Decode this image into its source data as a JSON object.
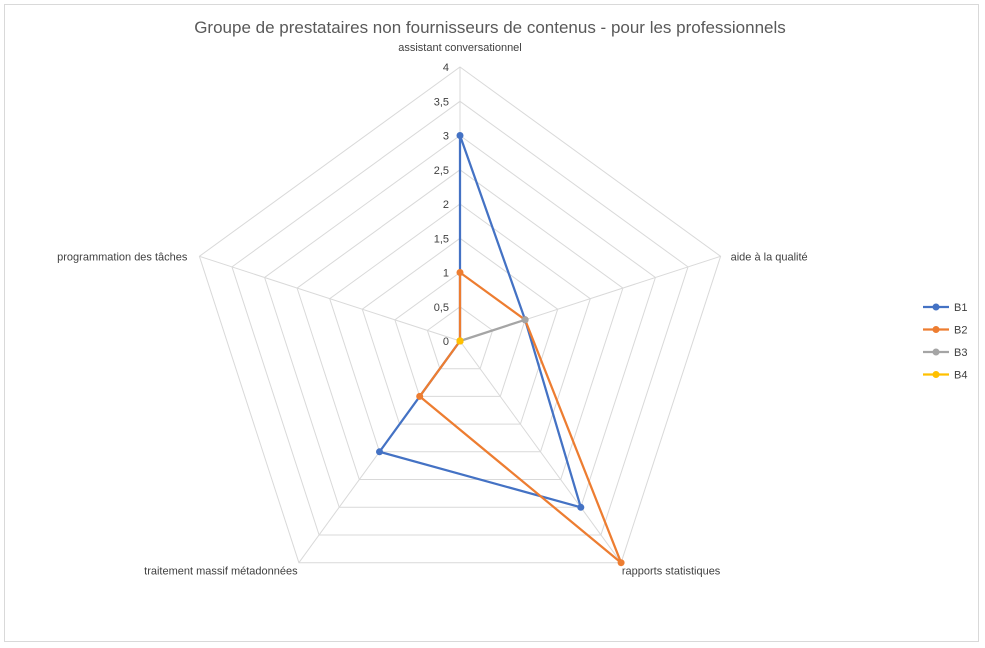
{
  "chart_data": {
    "type": "radar",
    "title": "Groupe de prestataires non fournisseurs de contenus - pour les professionnels",
    "categories": [
      "assistant conversationnel",
      "aide à la qualité",
      "rapports statistiques",
      "traitement massif métadonnées",
      "programmation des tâches"
    ],
    "rlim": [
      0,
      4
    ],
    "ticks": [
      "0",
      "0,5",
      "1",
      "1,5",
      "2",
      "2,5",
      "3",
      "3,5",
      "4"
    ],
    "tick_values": [
      0,
      0.5,
      1,
      1.5,
      2,
      2.5,
      3,
      3.5,
      4
    ],
    "grid": true,
    "legend_position": "right",
    "series": [
      {
        "name": "B1",
        "color": "#4472c4",
        "values": [
          3,
          1,
          3,
          2,
          0
        ]
      },
      {
        "name": "B2",
        "color": "#ed7d31",
        "values": [
          1,
          1,
          4,
          1,
          0
        ]
      },
      {
        "name": "B3",
        "color": "#a5a5a5",
        "values": [
          0,
          1,
          0,
          0,
          0
        ]
      },
      {
        "name": "B4",
        "color": "#ffc000",
        "values": [
          0,
          0,
          0,
          0,
          0
        ]
      }
    ]
  }
}
